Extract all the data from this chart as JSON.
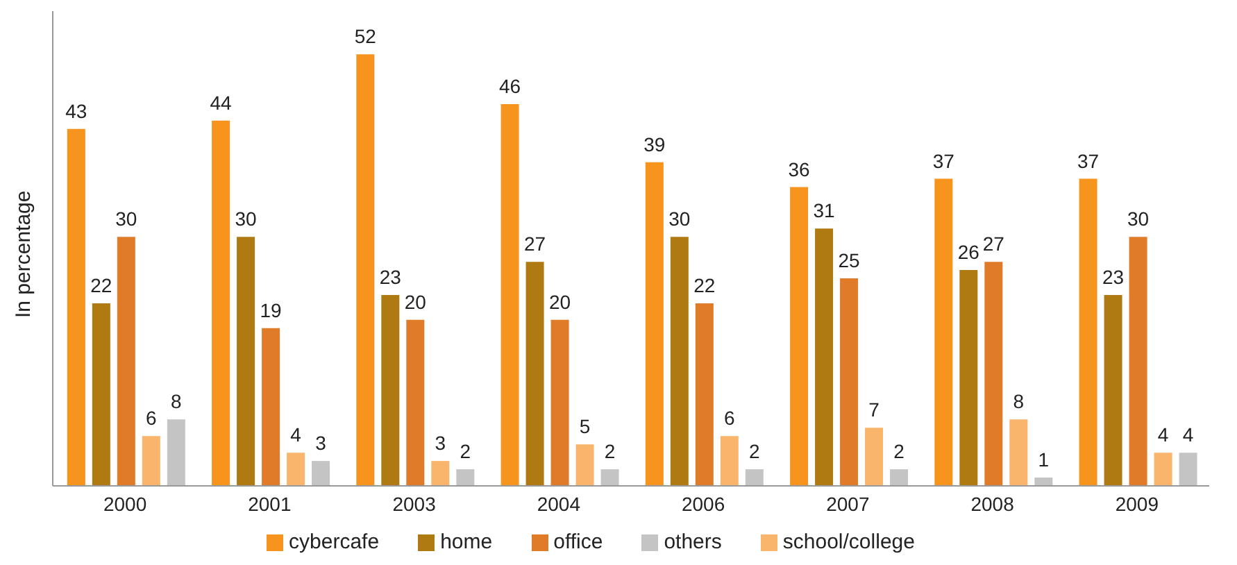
{
  "chart_data": {
    "type": "bar",
    "ylabel": "In percentage",
    "categories": [
      "2000",
      "2001",
      "2003",
      "2004",
      "2006",
      "2007",
      "2008",
      "2009"
    ],
    "series": [
      {
        "name": "cybercafe",
        "color": "#f7941d",
        "values": [
          43,
          44,
          52,
          46,
          39,
          36,
          37,
          37
        ]
      },
      {
        "name": "home",
        "color": "#b07a12",
        "values": [
          22,
          30,
          23,
          27,
          30,
          31,
          26,
          23
        ]
      },
      {
        "name": "office",
        "color": "#e07b2a",
        "values": [
          30,
          19,
          20,
          20,
          22,
          25,
          27,
          30
        ]
      },
      {
        "name": "school/college",
        "color": "#f9b56c",
        "values": [
          6,
          4,
          3,
          5,
          6,
          7,
          8,
          4
        ]
      },
      {
        "name": "others",
        "color": "#c4c4c4",
        "values": [
          8,
          3,
          2,
          2,
          2,
          2,
          1,
          4
        ]
      }
    ],
    "data_labels": true,
    "tick_labels": "x",
    "grid": false,
    "legend": "bottom"
  }
}
